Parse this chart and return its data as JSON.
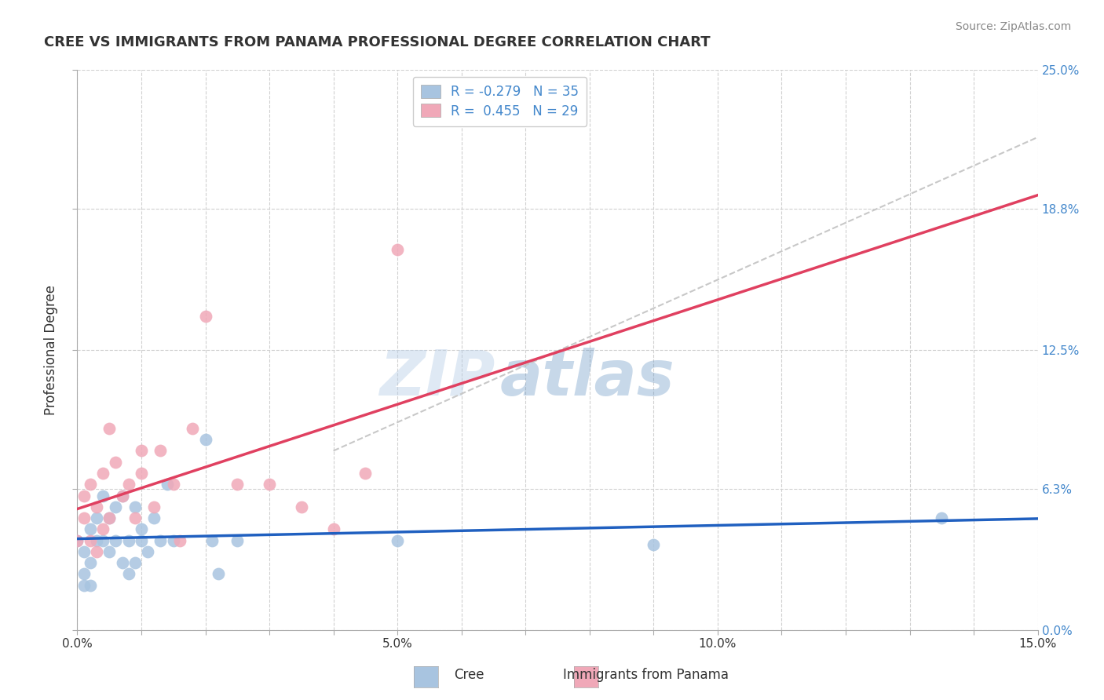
{
  "title": "CREE VS IMMIGRANTS FROM PANAMA PROFESSIONAL DEGREE CORRELATION CHART",
  "source": "Source: ZipAtlas.com",
  "xlabel": "",
  "ylabel": "Professional Degree",
  "xlim": [
    0.0,
    0.15
  ],
  "ylim": [
    0.0,
    0.25
  ],
  "ytick_positions": [
    0.0,
    0.063,
    0.125,
    0.188,
    0.25
  ],
  "legend_r1": "R = -0.279",
  "legend_n1": "N = 35",
  "legend_r2": "R =  0.455",
  "legend_n2": "N = 29",
  "cree_color": "#a8c4e0",
  "panama_color": "#f0a8b8",
  "cree_line_color": "#2060c0",
  "panama_line_color": "#e04060",
  "trendline_gray_color": "#c8c8c8",
  "background_color": "#ffffff",
  "grid_color": "#d0d0d0",
  "watermark_zip": "ZIP",
  "watermark_atlas": "atlas",
  "cree_points_x": [
    0.0,
    0.001,
    0.001,
    0.001,
    0.002,
    0.002,
    0.002,
    0.003,
    0.003,
    0.004,
    0.004,
    0.005,
    0.005,
    0.006,
    0.006,
    0.007,
    0.007,
    0.008,
    0.008,
    0.009,
    0.009,
    0.01,
    0.01,
    0.011,
    0.012,
    0.013,
    0.014,
    0.015,
    0.02,
    0.021,
    0.022,
    0.025,
    0.05,
    0.09,
    0.135
  ],
  "cree_points_y": [
    0.04,
    0.035,
    0.025,
    0.02,
    0.045,
    0.03,
    0.02,
    0.05,
    0.04,
    0.06,
    0.04,
    0.05,
    0.035,
    0.055,
    0.04,
    0.06,
    0.03,
    0.04,
    0.025,
    0.055,
    0.03,
    0.04,
    0.045,
    0.035,
    0.05,
    0.04,
    0.065,
    0.04,
    0.085,
    0.04,
    0.025,
    0.04,
    0.04,
    0.038,
    0.05
  ],
  "panama_points_x": [
    0.0,
    0.001,
    0.001,
    0.002,
    0.002,
    0.003,
    0.003,
    0.004,
    0.004,
    0.005,
    0.005,
    0.006,
    0.007,
    0.008,
    0.009,
    0.01,
    0.01,
    0.012,
    0.013,
    0.015,
    0.016,
    0.018,
    0.02,
    0.025,
    0.03,
    0.035,
    0.04,
    0.045,
    0.05
  ],
  "panama_points_y": [
    0.04,
    0.05,
    0.06,
    0.04,
    0.065,
    0.035,
    0.055,
    0.045,
    0.07,
    0.09,
    0.05,
    0.075,
    0.06,
    0.065,
    0.05,
    0.07,
    0.08,
    0.055,
    0.08,
    0.065,
    0.04,
    0.09,
    0.14,
    0.065,
    0.065,
    0.055,
    0.045,
    0.07,
    0.17
  ]
}
